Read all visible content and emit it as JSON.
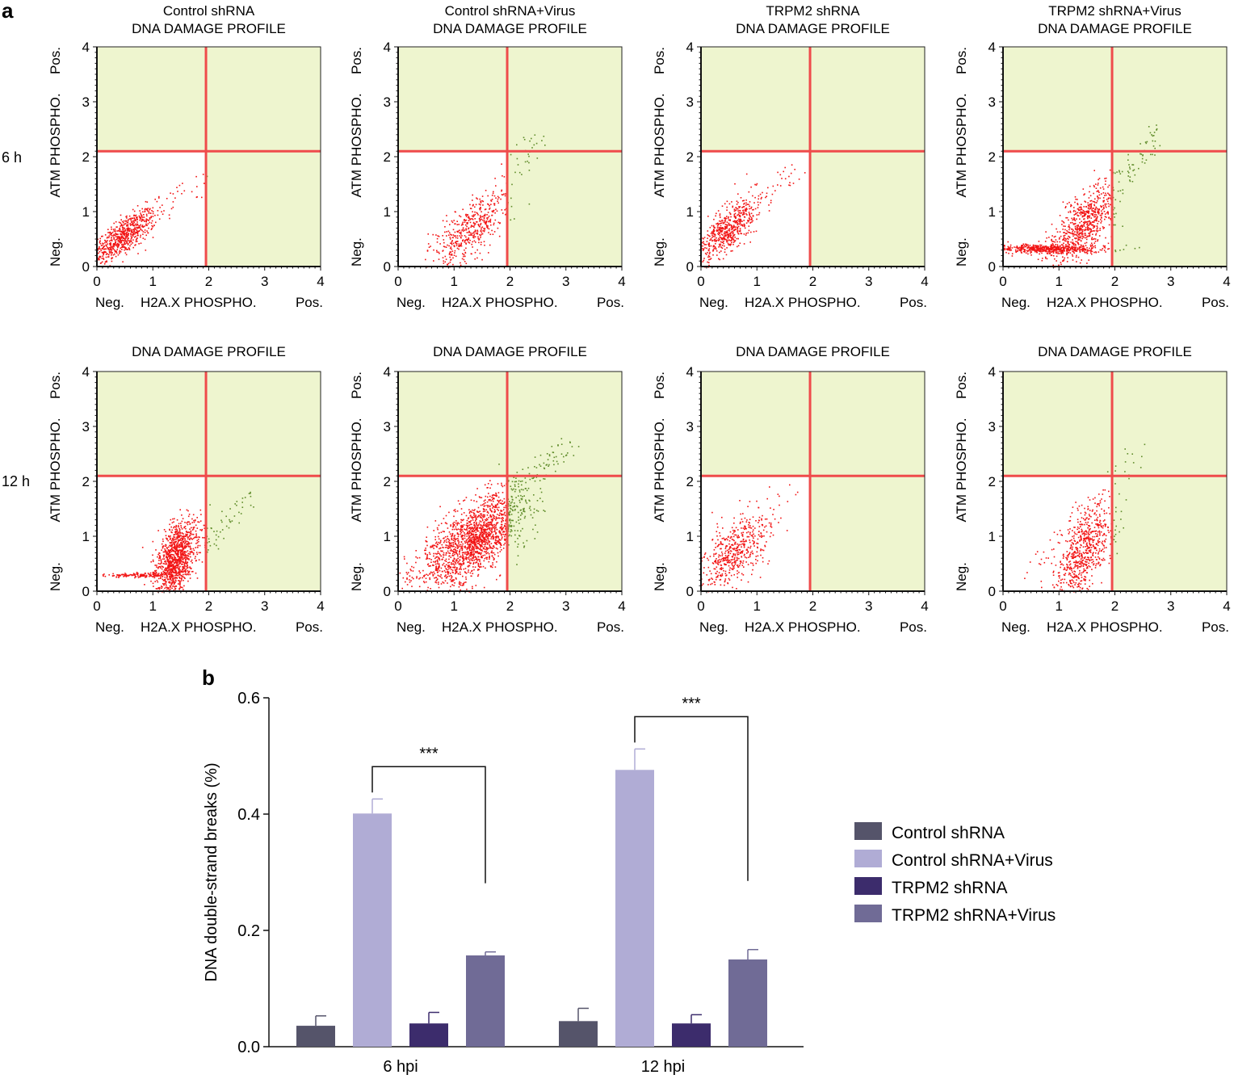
{
  "panel_a_label": "a",
  "panel_b_label": "b",
  "chart_data": [
    {
      "type": "scatter",
      "panel": "a",
      "title_prefix": "DNA DAMAGE PROFILE",
      "conditions": [
        "Control shRNA",
        "Control shRNA+Virus",
        "TRPM2 shRNA",
        "TRPM2 shRNA+Virus"
      ],
      "row_labels": [
        "6 h",
        "12 h"
      ],
      "xlabel": "H2A.X PHOSPHO.",
      "ylabel": "ATM PHOSPHO.",
      "x_neg_label": "Neg.",
      "x_pos_label": "Pos.",
      "y_neg_label": "Neg.",
      "y_pos_label": "Pos.",
      "xlim": [
        0,
        4
      ],
      "ylim": [
        0,
        4
      ],
      "ticks": [
        "0",
        "1",
        "2",
        "3",
        "4"
      ],
      "gates": {
        "x": 1.95,
        "y": 2.1
      },
      "colors": {
        "quadrant_fill": "#eef5cf",
        "gate_line": "#ef4b4b",
        "event_red": "#f21414",
        "event_green": "#5f8c2a"
      },
      "plots": [
        {
          "row": 0,
          "col": 0,
          "clusters": [
            {
              "cx": 0.45,
              "cy": 0.55,
              "sx": 0.3,
              "sy": 0.25,
              "n": 700,
              "corr": 0.75
            }
          ],
          "sparse": [
            {
              "x": [
                0.8,
                2.0
              ],
              "y": [
                0.9,
                1.6
              ],
              "n": 25
            }
          ]
        },
        {
          "row": 0,
          "col": 1,
          "clusters": [
            {
              "cx": 1.25,
              "cy": 0.65,
              "sx": 0.35,
              "sy": 0.35,
              "n": 450,
              "corr": 0.7
            }
          ],
          "sparse": [
            {
              "x": [
                1.4,
                2.6
              ],
              "y": [
                1.0,
                2.5
              ],
              "n": 60
            }
          ]
        },
        {
          "row": 0,
          "col": 2,
          "clusters": [
            {
              "cx": 0.45,
              "cy": 0.65,
              "sx": 0.3,
              "sy": 0.3,
              "n": 600,
              "corr": 0.75
            }
          ],
          "sparse": [
            {
              "x": [
                0.7,
                1.7
              ],
              "y": [
                1.0,
                1.7
              ],
              "n": 30
            }
          ]
        },
        {
          "row": 0,
          "col": 3,
          "clusters": [
            {
              "cx": 0.8,
              "cy": 0.33,
              "sx": 0.5,
              "sy": 0.04,
              "n": 500,
              "corr": 0.0
            },
            {
              "cx": 1.4,
              "cy": 0.75,
              "sx": 0.3,
              "sy": 0.35,
              "n": 650,
              "corr": 0.65
            }
          ],
          "sparse": [
            {
              "x": [
                1.6,
                2.7
              ],
              "y": [
                1.0,
                2.4
              ],
              "n": 90
            }
          ]
        },
        {
          "row": 1,
          "col": 0,
          "clusters": [
            {
              "cx": 1.4,
              "cy": 0.6,
              "sx": 0.18,
              "sy": 0.35,
              "n": 1100,
              "corr": 0.45
            },
            {
              "cx": 0.8,
              "cy": 0.3,
              "sx": 0.35,
              "sy": 0.02,
              "n": 150,
              "corr": 0.0
            }
          ],
          "sparse": [
            {
              "x": [
                1.8,
                2.7
              ],
              "y": [
                0.8,
                1.7
              ],
              "n": 60
            }
          ]
        },
        {
          "row": 1,
          "col": 1,
          "clusters": [
            {
              "cx": 1.35,
              "cy": 0.95,
              "sx": 0.45,
              "sy": 0.42,
              "n": 1600,
              "corr": 0.65
            }
          ],
          "sparse": [
            {
              "x": [
                0.0,
                3.1
              ],
              "y": [
                0.2,
                2.7
              ],
              "n": 200
            }
          ]
        },
        {
          "row": 1,
          "col": 2,
          "clusters": [
            {
              "cx": 0.6,
              "cy": 0.75,
              "sx": 0.3,
              "sy": 0.35,
              "n": 500,
              "corr": 0.6
            }
          ],
          "sparse": [
            {
              "x": [
                0.9,
                1.6
              ],
              "y": [
                0.9,
                1.8
              ],
              "n": 25
            }
          ]
        },
        {
          "row": 1,
          "col": 3,
          "clusters": [
            {
              "cx": 1.45,
              "cy": 0.75,
              "sx": 0.25,
              "sy": 0.4,
              "n": 650,
              "corr": 0.6
            }
          ],
          "sparse": [
            {
              "x": [
                0.5,
                2.5
              ],
              "y": [
                0.4,
                2.6
              ],
              "n": 70
            }
          ]
        }
      ]
    },
    {
      "type": "bar",
      "panel": "b",
      "categories": [
        "6 hpi",
        "12 hpi"
      ],
      "ylabel": "DNA double-strand breaks (%)",
      "ylim": [
        0,
        0.6
      ],
      "yticks": [
        "0.0",
        "0.2",
        "0.4",
        "0.6"
      ],
      "series": [
        {
          "name": "Control shRNA",
          "color": "#55546a",
          "values": [
            0.036,
            0.044
          ],
          "errors": [
            0.017,
            0.022
          ]
        },
        {
          "name": "Control shRNA+Virus",
          "color": "#b0acd5",
          "values": [
            0.401,
            0.476
          ],
          "errors": [
            0.025,
            0.036
          ]
        },
        {
          "name": "TRPM2 shRNA",
          "color": "#3c2c6c",
          "values": [
            0.04,
            0.04
          ],
          "errors": [
            0.019,
            0.015
          ]
        },
        {
          "name": "TRPM2 shRNA+Virus",
          "color": "#706b96",
          "values": [
            0.157,
            0.15
          ],
          "errors": [
            0.006,
            0.017
          ]
        }
      ],
      "significance": [
        {
          "category": "6 hpi",
          "from_series": 1,
          "to_series": 3,
          "label": "***"
        },
        {
          "category": "12 hpi",
          "from_series": 1,
          "to_series": 3,
          "label": "***"
        }
      ]
    }
  ]
}
